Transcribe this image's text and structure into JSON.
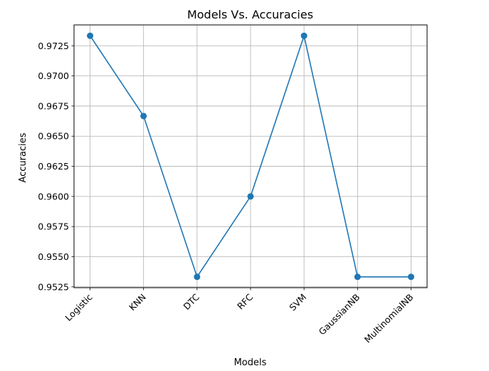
{
  "chart_data": {
    "type": "line",
    "title": "Models Vs. Accuracies",
    "xlabel": "Models",
    "ylabel": "Accuracies",
    "categories": [
      "Logistic",
      "KNN",
      "DTC",
      "RFC",
      "SVM",
      "GaussianNB",
      "MultinomialNB"
    ],
    "series": [
      {
        "values": [
          0.97333,
          0.96667,
          0.95333,
          0.96,
          0.97333,
          0.95333,
          0.95333
        ],
        "color": "#1f77b4",
        "marker": "circle"
      }
    ],
    "yticks": [
      0.9525,
      0.955,
      0.9575,
      0.96,
      0.9625,
      0.965,
      0.9675,
      0.97,
      0.9725
    ],
    "ytick_labels": [
      "0.9525",
      "0.9550",
      "0.9575",
      "0.9600",
      "0.9625",
      "0.9650",
      "0.9675",
      "0.9700",
      "0.9725"
    ],
    "ylim": [
      0.95243,
      0.97423
    ],
    "grid": true,
    "xtick_rotation_deg": 45
  }
}
